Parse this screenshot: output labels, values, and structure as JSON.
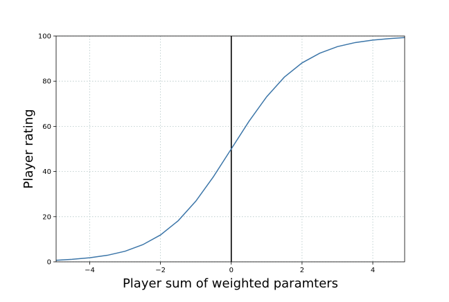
{
  "chart_data": {
    "type": "line",
    "title": "",
    "xlabel": "Player sum of weighted paramters",
    "ylabel": "Player rating",
    "xlim": [
      -4.95,
      4.9
    ],
    "ylim": [
      0,
      100
    ],
    "xticks": [
      -4,
      -2,
      0,
      2,
      4
    ],
    "xtick_labels": [
      "−4",
      "−2",
      "0",
      "2",
      "4"
    ],
    "yticks": [
      0,
      20,
      40,
      60,
      80,
      100
    ],
    "ytick_labels": [
      "0",
      "20",
      "40",
      "60",
      "80",
      "100"
    ],
    "grid": true,
    "vertical_line_x": 0,
    "series": [
      {
        "color": "#3b75a8",
        "x": [
          -4.95,
          -4.5,
          -4,
          -3.5,
          -3,
          -2.5,
          -2,
          -1.5,
          -1,
          -0.5,
          0,
          0.5,
          1,
          1.5,
          2,
          2.5,
          3,
          3.5,
          4,
          4.5,
          4.9
        ],
        "y": [
          0.7,
          1.1,
          1.8,
          2.9,
          4.7,
          7.6,
          11.9,
          18.2,
          26.9,
          37.8,
          50.0,
          62.2,
          73.1,
          81.8,
          88.1,
          92.4,
          95.3,
          97.1,
          98.2,
          98.9,
          99.3
        ]
      }
    ],
    "colors": {
      "line": "#3b75a8",
      "zero_line": "#000000",
      "grid": "#b0c4c4"
    }
  }
}
